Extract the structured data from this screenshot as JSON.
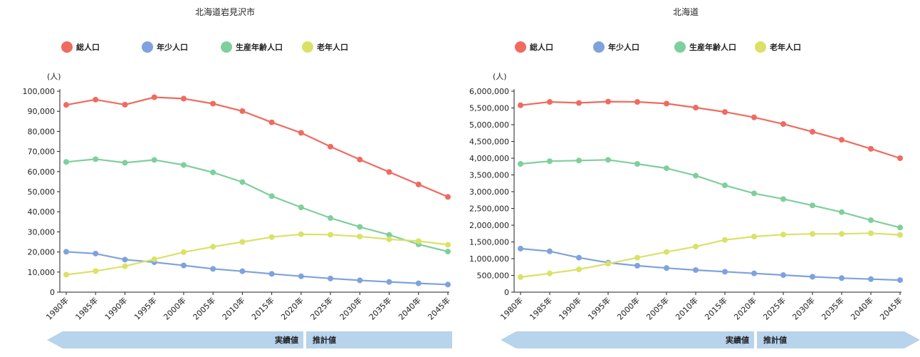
{
  "colors": {
    "total": "#f06a5f",
    "youth": "#7fa2dd",
    "working": "#7fcf9c",
    "elderly": "#d9e266",
    "band": "#b8d3ec"
  },
  "band_labels": {
    "actual": "実績値",
    "projected": "推計値"
  },
  "chart_data": [
    {
      "type": "line",
      "title": "北海道岩見沢市",
      "ylabel": "(人)",
      "ylim": [
        0,
        100000
      ],
      "yticks": [
        0,
        10000,
        20000,
        30000,
        40000,
        50000,
        60000,
        70000,
        80000,
        90000,
        100000
      ],
      "ytick_labels": [
        "0",
        "10,000",
        "20,000",
        "30,000",
        "40,000",
        "50,000",
        "60,000",
        "70,000",
        "80,000",
        "90,000",
        "100,000"
      ],
      "categories": [
        "1980年",
        "1985年",
        "1990年",
        "1995年",
        "2000年",
        "2005年",
        "2010年",
        "2015年",
        "2020年",
        "2025年",
        "2030年",
        "2035年",
        "2040年",
        "2045年"
      ],
      "legend_position": "top-left",
      "series": [
        {
          "name": "総人口",
          "key": "total",
          "values": [
            93200,
            95800,
            93300,
            97000,
            96300,
            93800,
            90100,
            84500,
            79300,
            72400,
            66000,
            59800,
            53600,
            47400
          ]
        },
        {
          "name": "年少人口",
          "key": "youth",
          "values": [
            20100,
            19200,
            16200,
            14900,
            13300,
            11600,
            10400,
            9100,
            7900,
            6800,
            5900,
            5100,
            4400,
            3800
          ]
        },
        {
          "name": "生産年齢人口",
          "key": "working",
          "values": [
            64800,
            66200,
            64400,
            65800,
            63300,
            59600,
            54800,
            47800,
            42200,
            36900,
            32500,
            28500,
            23800,
            20200
          ]
        },
        {
          "name": "老年人口",
          "key": "elderly",
          "values": [
            8700,
            10500,
            12900,
            16400,
            19900,
            22600,
            25000,
            27400,
            28800,
            28600,
            27700,
            26300,
            25400,
            23600
          ]
        }
      ]
    },
    {
      "type": "line",
      "title": "北海道",
      "ylabel": "(人)",
      "ylim": [
        0,
        6000000
      ],
      "yticks": [
        0,
        500000,
        1000000,
        1500000,
        2000000,
        2500000,
        3000000,
        3500000,
        4000000,
        4500000,
        5000000,
        5500000,
        6000000
      ],
      "ytick_labels": [
        "0",
        "500,000",
        "1,000,000",
        "1,500,000",
        "2,000,000",
        "2,500,000",
        "3,000,000",
        "3,500,000",
        "4,000,000",
        "4,500,000",
        "5,000,000",
        "5,500,000",
        "6,000,000"
      ],
      "categories": [
        "1980年",
        "1985年",
        "1990年",
        "1995年",
        "2000年",
        "2005年",
        "2010年",
        "2015年",
        "2020年",
        "2025年",
        "2030年",
        "2035年",
        "2040年",
        "2045年"
      ],
      "legend_position": "top-left",
      "series": [
        {
          "name": "総人口",
          "key": "total",
          "values": [
            5580000,
            5680000,
            5650000,
            5690000,
            5680000,
            5630000,
            5510000,
            5380000,
            5220000,
            5020000,
            4790000,
            4550000,
            4280000,
            4000000
          ]
        },
        {
          "name": "年少人口",
          "key": "youth",
          "values": [
            1300000,
            1220000,
            1030000,
            880000,
            790000,
            720000,
            660000,
            610000,
            560000,
            510000,
            460000,
            420000,
            390000,
            360000
          ]
        },
        {
          "name": "生産年齢人口",
          "key": "working",
          "values": [
            3830000,
            3910000,
            3930000,
            3950000,
            3830000,
            3700000,
            3480000,
            3190000,
            2950000,
            2780000,
            2590000,
            2390000,
            2150000,
            1930000
          ]
        },
        {
          "name": "老年人口",
          "key": "elderly",
          "values": [
            450000,
            560000,
            680000,
            850000,
            1030000,
            1200000,
            1360000,
            1560000,
            1660000,
            1720000,
            1740000,
            1740000,
            1760000,
            1710000
          ]
        }
      ]
    }
  ]
}
